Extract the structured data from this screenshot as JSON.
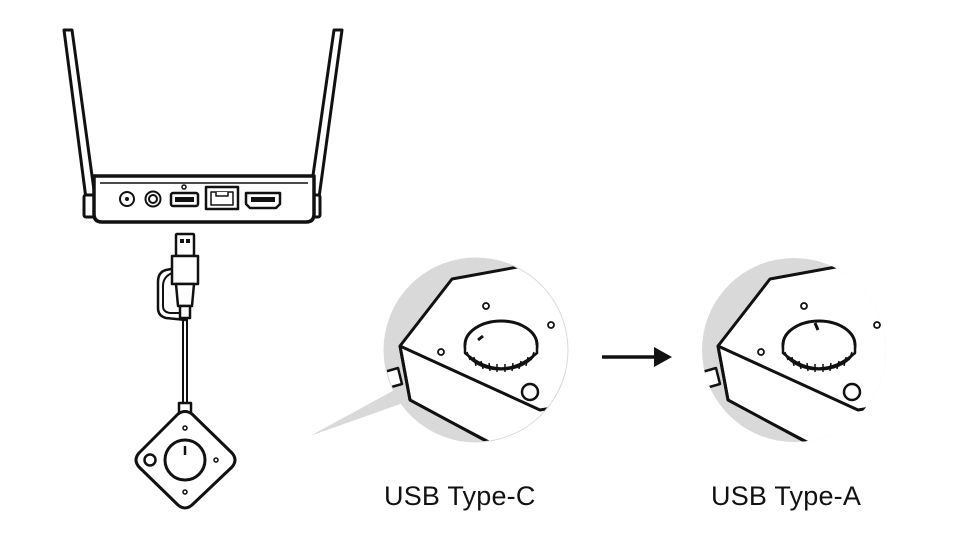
{
  "captions": {
    "left": "USB Type-C",
    "right": "USB Type-A"
  },
  "colors": {
    "line": "#111111",
    "lens_gray": "#d9d9d9",
    "background": "#ffffff"
  }
}
